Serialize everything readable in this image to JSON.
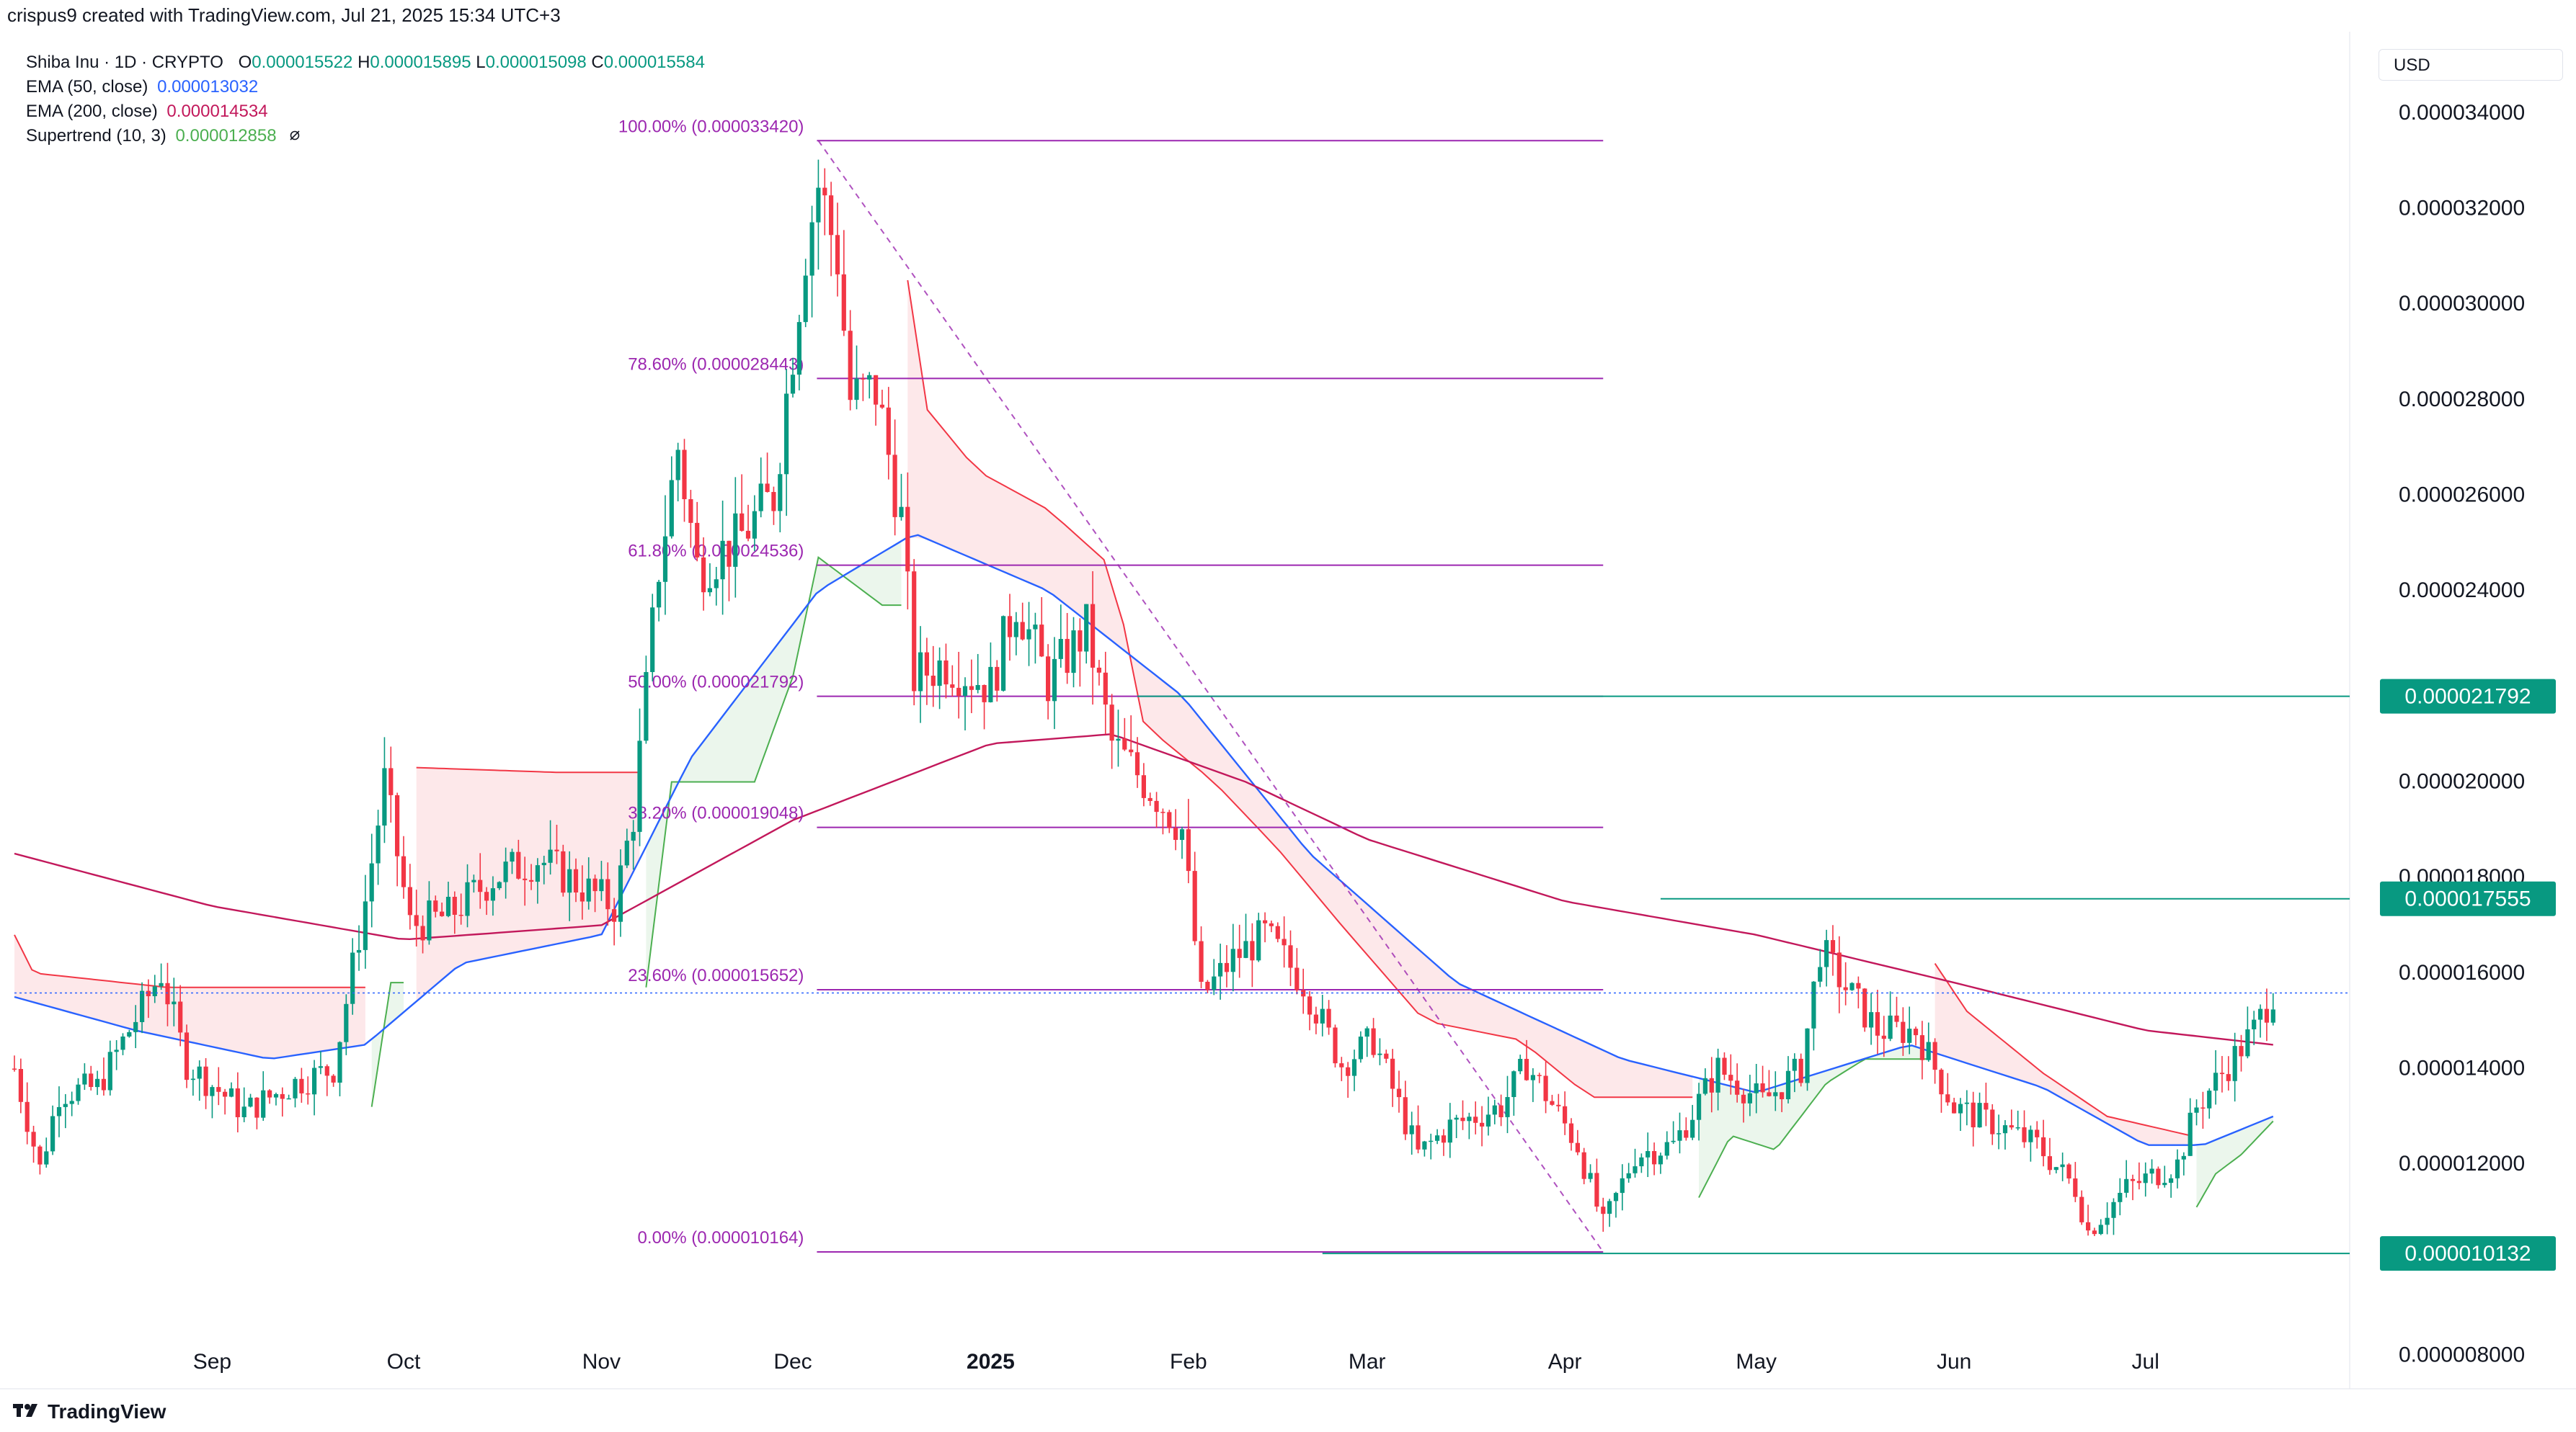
{
  "header": {
    "credit": "crispus9 created with TradingView.com, Jul 21, 2025 15:34 UTC+3"
  },
  "legend": {
    "symbol": "Shiba Inu · 1D · CRYPTO",
    "o_label": "O",
    "o": "0.000015522",
    "h_label": "H",
    "h": "0.000015895",
    "l_label": "L",
    "l": "0.000015098",
    "c_label": "C",
    "c": "0.000015584",
    "ema50_label": "EMA (50, close)",
    "ema50": "0.000013032",
    "ema200_label": "EMA (200, close)",
    "ema200": "0.000014534",
    "supertrend_label": "Supertrend (10, 3)",
    "supertrend": "0.000012858",
    "eye_icon": "eye-off-icon"
  },
  "currency": "USD",
  "brand": "TradingView",
  "colors": {
    "up": "#089981",
    "down": "#f23645",
    "ema50": "#2962ff",
    "ema200": "#c2185b",
    "fib": "#9c27b0",
    "fib_text": "#9c27b0",
    "level": "#089981",
    "st_up": "#4caf50",
    "st_down": "#f23645",
    "st_up_fill": "#e8f5e9",
    "st_down_fill": "#fde4e6",
    "grid": "#f0f3fa",
    "axis_text": "#131722"
  },
  "chart_data": {
    "type": "candlestick",
    "title": "Shiba Inu · 1D · CRYPTO",
    "xlabel": "",
    "ylabel": "",
    "ylim": [
      7.3e-06,
      3.57e-05
    ],
    "yticks": [
      "0.000008000",
      "0.000012000",
      "0.000014000",
      "0.000016000",
      "0.000018000",
      "0.000020000",
      "0.000024000",
      "0.000026000",
      "0.000028000",
      "0.000030000",
      "0.000032000",
      "0.000034000"
    ],
    "xticks": [
      {
        "label": "Sep",
        "date": "2024-09-01"
      },
      {
        "label": "Oct",
        "date": "2024-10-01"
      },
      {
        "label": "Nov",
        "date": "2024-11-01"
      },
      {
        "label": "Dec",
        "date": "2024-12-01"
      },
      {
        "label": "2025",
        "date": "2025-01-01",
        "bold": true
      },
      {
        "label": "Feb",
        "date": "2025-02-01"
      },
      {
        "label": "Mar",
        "date": "2025-03-01"
      },
      {
        "label": "Apr",
        "date": "2025-04-01"
      },
      {
        "label": "May",
        "date": "2025-05-01"
      },
      {
        "label": "Jun",
        "date": "2025-06-01"
      },
      {
        "label": "Jul",
        "date": "2025-07-01"
      }
    ],
    "x_range": [
      "2024-08-01",
      "2025-08-02"
    ],
    "anchors": [
      [
        "2024-08-01",
        1.4e-05
      ],
      [
        "2024-08-05",
        1.19e-05
      ],
      [
        "2024-08-08",
        1.35e-05
      ],
      [
        "2024-08-14",
        1.36e-05
      ],
      [
        "2024-08-24",
        1.6e-05
      ],
      [
        "2024-08-28",
        1.41e-05
      ],
      [
        "2024-09-06",
        1.31e-05
      ],
      [
        "2024-09-14",
        1.37e-05
      ],
      [
        "2024-09-20",
        1.4e-05
      ],
      [
        "2024-09-25",
        1.75e-05
      ],
      [
        "2024-09-28",
        2e-05
      ],
      [
        "2024-10-02",
        1.7e-05
      ],
      [
        "2024-10-08",
        1.72e-05
      ],
      [
        "2024-10-15",
        1.8e-05
      ],
      [
        "2024-10-22",
        1.84e-05
      ],
      [
        "2024-10-29",
        1.78e-05
      ],
      [
        "2024-11-03",
        1.74e-05
      ],
      [
        "2024-11-06",
        1.93e-05
      ],
      [
        "2024-11-10",
        2.45e-05
      ],
      [
        "2024-11-13",
        2.7e-05
      ],
      [
        "2024-11-16",
        2.45e-05
      ],
      [
        "2024-11-22",
        2.5e-05
      ],
      [
        "2024-11-28",
        2.6e-05
      ],
      [
        "2024-12-03",
        3.12e-05
      ],
      [
        "2024-12-05",
        3.25e-05
      ],
      [
        "2024-12-08",
        3.1e-05
      ],
      [
        "2024-12-10",
        2.8e-05
      ],
      [
        "2024-12-14",
        2.82e-05
      ],
      [
        "2024-12-18",
        2.55e-05
      ],
      [
        "2024-12-20",
        2.22e-05
      ],
      [
        "2024-12-25",
        2.25e-05
      ],
      [
        "2025-01-01",
        2.2e-05
      ],
      [
        "2025-01-05",
        2.38e-05
      ],
      [
        "2025-01-10",
        2.21e-05
      ],
      [
        "2025-01-16",
        2.32e-05
      ],
      [
        "2025-01-20",
        2.08e-05
      ],
      [
        "2025-01-27",
        1.97e-05
      ],
      [
        "2025-01-31",
        1.9e-05
      ],
      [
        "2025-02-03",
        1.55e-05
      ],
      [
        "2025-02-08",
        1.63e-05
      ],
      [
        "2025-02-13",
        1.68e-05
      ],
      [
        "2025-02-19",
        1.58e-05
      ],
      [
        "2025-02-25",
        1.41e-05
      ],
      [
        "2025-03-02",
        1.46e-05
      ],
      [
        "2025-03-09",
        1.22e-05
      ],
      [
        "2025-03-14",
        1.28e-05
      ],
      [
        "2025-03-22",
        1.32e-05
      ],
      [
        "2025-03-26",
        1.41e-05
      ],
      [
        "2025-04-03",
        1.24e-05
      ],
      [
        "2025-04-07",
        1.07e-05
      ],
      [
        "2025-04-12",
        1.22e-05
      ],
      [
        "2025-04-18",
        1.24e-05
      ],
      [
        "2025-04-25",
        1.4e-05
      ],
      [
        "2025-05-02",
        1.33e-05
      ],
      [
        "2025-05-08",
        1.4e-05
      ],
      [
        "2025-05-11",
        1.65e-05
      ],
      [
        "2025-05-15",
        1.57e-05
      ],
      [
        "2025-05-20",
        1.48e-05
      ],
      [
        "2025-05-26",
        1.48e-05
      ],
      [
        "2025-06-01",
        1.32e-05
      ],
      [
        "2025-06-08",
        1.28e-05
      ],
      [
        "2025-06-14",
        1.24e-05
      ],
      [
        "2025-06-20",
        1.15e-05
      ],
      [
        "2025-06-22",
        1.06e-05
      ],
      [
        "2025-06-28",
        1.15e-05
      ],
      [
        "2025-07-06",
        1.2e-05
      ],
      [
        "2025-07-09",
        1.32e-05
      ],
      [
        "2025-07-13",
        1.39e-05
      ],
      [
        "2025-07-18",
        1.48e-05
      ],
      [
        "2025-07-21",
        1.56e-05
      ]
    ],
    "series": [
      {
        "name": "EMA (50, close)",
        "type": "line",
        "color": "#2962ff",
        "points": [
          [
            "2024-08-01",
            1.55e-05
          ],
          [
            "2024-08-20",
            1.48e-05
          ],
          [
            "2024-09-10",
            1.42e-05
          ],
          [
            "2024-09-25",
            1.45e-05
          ],
          [
            "2024-10-10",
            1.62e-05
          ],
          [
            "2024-11-01",
            1.68e-05
          ],
          [
            "2024-11-15",
            2.05e-05
          ],
          [
            "2024-12-05",
            2.4e-05
          ],
          [
            "2024-12-20",
            2.52e-05
          ],
          [
            "2025-01-10",
            2.4e-05
          ],
          [
            "2025-01-31",
            2.18e-05
          ],
          [
            "2025-02-20",
            1.85e-05
          ],
          [
            "2025-03-15",
            1.58e-05
          ],
          [
            "2025-04-10",
            1.42e-05
          ],
          [
            "2025-05-01",
            1.35e-05
          ],
          [
            "2025-05-25",
            1.45e-05
          ],
          [
            "2025-06-15",
            1.36e-05
          ],
          [
            "2025-07-01",
            1.24e-05
          ],
          [
            "2025-07-10",
            1.24e-05
          ],
          [
            "2025-07-21",
            1.3e-05
          ]
        ]
      },
      {
        "name": "EMA (200, close)",
        "type": "line",
        "color": "#c2185b",
        "points": [
          [
            "2024-08-01",
            1.85e-05
          ],
          [
            "2024-09-01",
            1.74e-05
          ],
          [
            "2024-10-01",
            1.67e-05
          ],
          [
            "2024-11-01",
            1.7e-05
          ],
          [
            "2024-12-01",
            1.92e-05
          ],
          [
            "2025-01-01",
            2.08e-05
          ],
          [
            "2025-01-20",
            2.1e-05
          ],
          [
            "2025-02-10",
            2e-05
          ],
          [
            "2025-03-01",
            1.88e-05
          ],
          [
            "2025-04-01",
            1.75e-05
          ],
          [
            "2025-05-01",
            1.68e-05
          ],
          [
            "2025-06-01",
            1.58e-05
          ],
          [
            "2025-07-01",
            1.48e-05
          ],
          [
            "2025-07-21",
            1.45e-05
          ]
        ]
      },
      {
        "name": "Supertrend (10, 3)",
        "type": "stepline",
        "points": [
          [
            "2024-08-01",
            1.68e-05,
            "down"
          ],
          [
            "2024-08-04",
            1.6e-05,
            "down"
          ],
          [
            "2024-08-25",
            1.57e-05,
            "down"
          ],
          [
            "2024-09-25",
            1.57e-05,
            "down"
          ],
          [
            "2024-09-26",
            1.32e-05,
            "up"
          ],
          [
            "2024-09-29",
            1.58e-05,
            "up"
          ],
          [
            "2024-10-01",
            1.58e-05,
            "up"
          ],
          [
            "2024-10-03",
            2.03e-05,
            "down"
          ],
          [
            "2024-10-25",
            2.02e-05,
            "down"
          ],
          [
            "2024-11-07",
            2.02e-05,
            "down"
          ],
          [
            "2024-11-08",
            1.57e-05,
            "up"
          ],
          [
            "2024-11-12",
            2e-05,
            "up"
          ],
          [
            "2024-11-25",
            2e-05,
            "up"
          ],
          [
            "2024-12-01",
            2.22e-05,
            "up"
          ],
          [
            "2024-12-05",
            2.47e-05,
            "up"
          ],
          [
            "2024-12-15",
            2.37e-05,
            "up"
          ],
          [
            "2024-12-18",
            2.37e-05,
            "up"
          ],
          [
            "2024-12-19",
            3.05e-05,
            "down"
          ],
          [
            "2024-12-22",
            2.78e-05,
            "down"
          ],
          [
            "2024-12-30",
            2.65e-05,
            "down"
          ],
          [
            "2025-01-10",
            2.57e-05,
            "down"
          ],
          [
            "2025-01-20",
            2.45e-05,
            "down"
          ],
          [
            "2025-01-25",
            2.12e-05,
            "down"
          ],
          [
            "2025-02-05",
            2e-05,
            "down"
          ],
          [
            "2025-02-15",
            1.86e-05,
            "down"
          ],
          [
            "2025-02-25",
            1.7e-05,
            "down"
          ],
          [
            "2025-03-10",
            1.5e-05,
            "down"
          ],
          [
            "2025-03-25",
            1.46e-05,
            "down"
          ],
          [
            "2025-04-05",
            1.34e-05,
            "down"
          ],
          [
            "2025-04-21",
            1.34e-05,
            "down"
          ],
          [
            "2025-04-22",
            1.13e-05,
            "up"
          ],
          [
            "2025-04-27",
            1.26e-05,
            "up"
          ],
          [
            "2025-05-04",
            1.23e-05,
            "up"
          ],
          [
            "2025-05-12",
            1.37e-05,
            "up"
          ],
          [
            "2025-05-18",
            1.42e-05,
            "up"
          ],
          [
            "2025-05-28",
            1.42e-05,
            "up"
          ],
          [
            "2025-05-29",
            1.62e-05,
            "down"
          ],
          [
            "2025-06-03",
            1.52e-05,
            "down"
          ],
          [
            "2025-06-15",
            1.39e-05,
            "down"
          ],
          [
            "2025-06-25",
            1.3e-05,
            "down"
          ],
          [
            "2025-07-08",
            1.26e-05,
            "down"
          ],
          [
            "2025-07-09",
            1.11e-05,
            "up"
          ],
          [
            "2025-07-12",
            1.18e-05,
            "up"
          ],
          [
            "2025-07-16",
            1.22e-05,
            "up"
          ],
          [
            "2025-07-21",
            1.29e-05,
            "up"
          ]
        ]
      }
    ],
    "fibonacci": {
      "start_date": "2024-12-05",
      "end_date": "2025-04-07",
      "levels": [
        {
          "label": "100.00% (0.000033420)",
          "price": 3.342e-05
        },
        {
          "label": "78.60% (0.000028443)",
          "price": 2.8443e-05
        },
        {
          "label": "61.80% (0.000024536)",
          "price": 2.4536e-05
        },
        {
          "label": "50.00% (0.000021792)",
          "price": 2.1792e-05
        },
        {
          "label": "38.20% (0.000019048)",
          "price": 1.9048e-05
        },
        {
          "label": "23.60% (0.000015652)",
          "price": 1.5652e-05
        },
        {
          "label": "0.00% (0.000010164)",
          "price": 1.0164e-05
        }
      ]
    },
    "levels": [
      {
        "label": "0.000021792",
        "price": 2.1792e-05,
        "from": "2025-01-24"
      },
      {
        "label": "0.000017555",
        "price": 1.7555e-05,
        "from": "2025-04-16"
      },
      {
        "label": "0.000010132",
        "price": 1.0132e-05,
        "from": "2025-02-22"
      }
    ],
    "last_price": 1.5584e-05,
    "last_date": "2025-07-21"
  }
}
